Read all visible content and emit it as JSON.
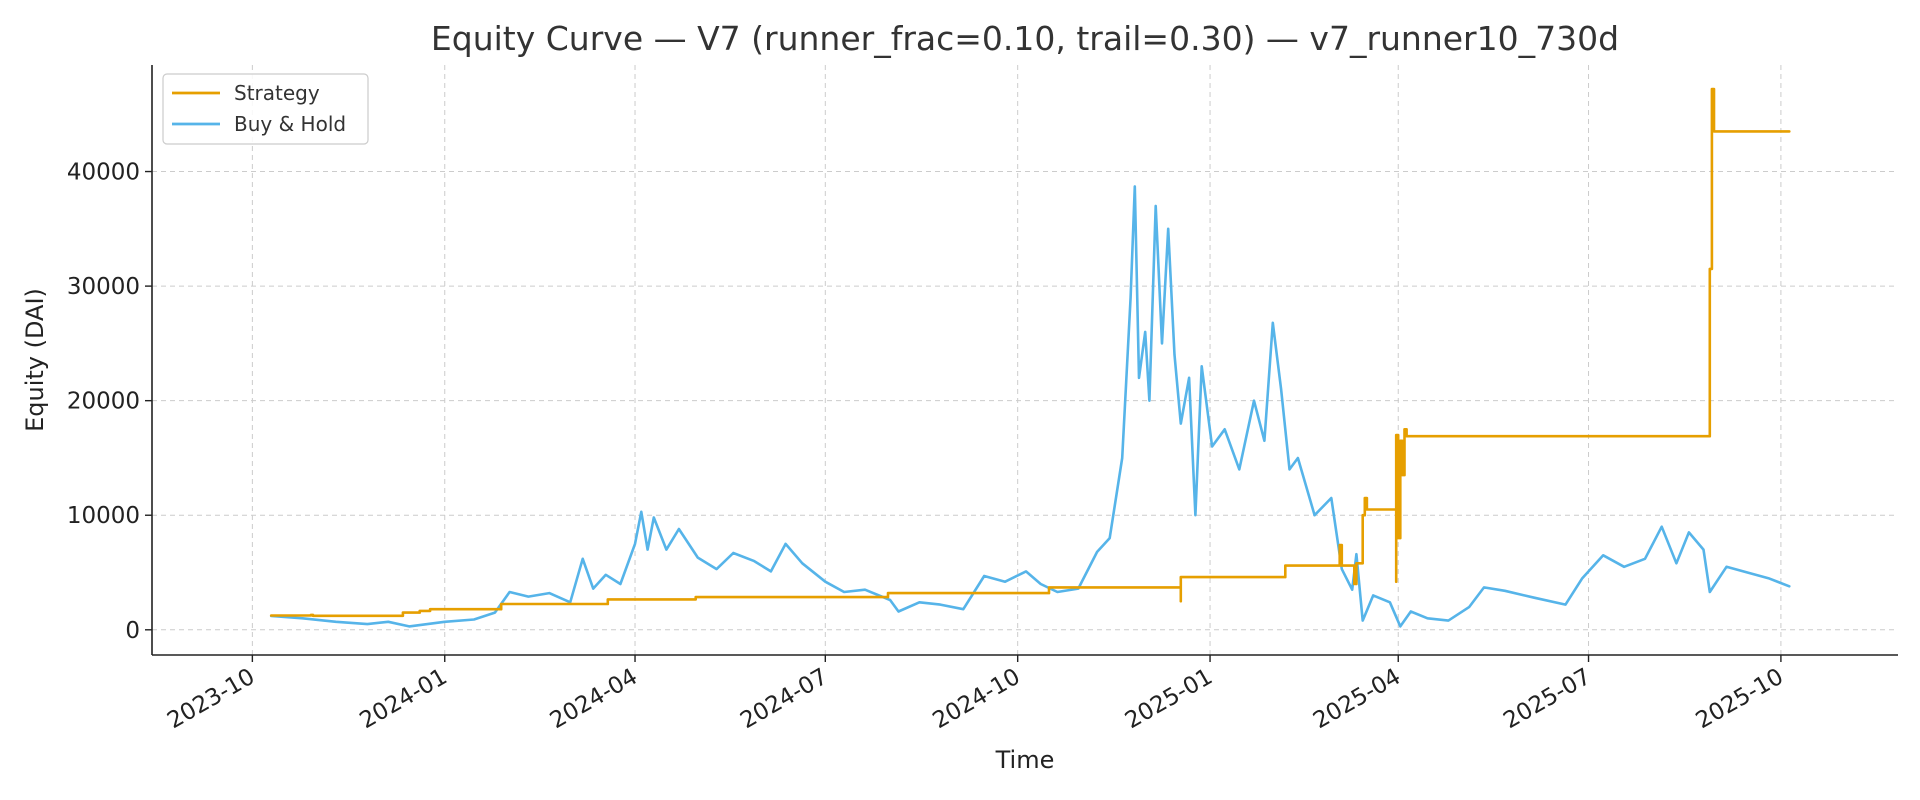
{
  "chart_data": {
    "type": "line",
    "title": "Equity Curve — V7 (runner_frac=0.10, trail=0.30) — v7_runner10_730d",
    "xlabel": "Time",
    "ylabel": "Equity (DAI)",
    "xlim": [
      "2023-08-14",
      "2025-11-26"
    ],
    "ylim": [
      -2200,
      49300
    ],
    "grid": true,
    "legend_position": "top-left",
    "x_ticks": [
      "2023-10",
      "2024-01",
      "2024-04",
      "2024-07",
      "2024-10",
      "2025-01",
      "2025-04",
      "2025-07",
      "2025-10"
    ],
    "y_ticks": [
      0,
      10000,
      20000,
      30000,
      40000
    ],
    "series": [
      {
        "name": "Strategy",
        "color": "#E69F00",
        "step": true,
        "points": [
          [
            "2023-10-10",
            1250
          ],
          [
            "2023-10-28",
            1250
          ],
          [
            "2023-10-29",
            1300
          ],
          [
            "2023-10-30",
            1220
          ],
          [
            "2023-12-11",
            1220
          ],
          [
            "2023-12-12",
            1500
          ],
          [
            "2023-12-20",
            1650
          ],
          [
            "2023-12-25",
            1800
          ],
          [
            "2024-01-27",
            1800
          ],
          [
            "2024-01-28",
            2250
          ],
          [
            "2024-03-18",
            2250
          ],
          [
            "2024-03-19",
            2650
          ],
          [
            "2024-04-29",
            2650
          ],
          [
            "2024-04-30",
            2850
          ],
          [
            "2024-07-30",
            2850
          ],
          [
            "2024-07-31",
            3200
          ],
          [
            "2024-10-15",
            3200
          ],
          [
            "2024-10-16",
            3700
          ],
          [
            "2024-12-17",
            3700
          ],
          [
            "2024-12-18",
            2500
          ],
          [
            "2024-12-18",
            4600
          ],
          [
            "2025-02-05",
            4600
          ],
          [
            "2025-02-06",
            5600
          ],
          [
            "2025-03-03",
            5600
          ],
          [
            "2025-03-04",
            7400
          ],
          [
            "2025-03-05",
            5600
          ],
          [
            "2025-03-10",
            5600
          ],
          [
            "2025-03-11",
            4000
          ],
          [
            "2025-03-12",
            5800
          ],
          [
            "2025-03-15",
            10000
          ],
          [
            "2025-03-16",
            11500
          ],
          [
            "2025-03-17",
            10500
          ],
          [
            "2025-03-30",
            10500
          ],
          [
            "2025-03-31",
            4200
          ],
          [
            "2025-03-31",
            17000
          ],
          [
            "2025-04-01",
            8000
          ],
          [
            "2025-04-02",
            16500
          ],
          [
            "2025-04-03",
            13500
          ],
          [
            "2025-04-04",
            17500
          ],
          [
            "2025-04-05",
            16900
          ],
          [
            "2025-08-28",
            16900
          ],
          [
            "2025-08-28",
            31500
          ],
          [
            "2025-08-29",
            36000
          ],
          [
            "2025-08-29",
            47200
          ],
          [
            "2025-08-30",
            43500
          ],
          [
            "2025-10-05",
            43500
          ]
        ]
      },
      {
        "name": "Buy & Hold",
        "color": "#56B4E9",
        "step": false,
        "points": [
          [
            "2023-10-10",
            1200
          ],
          [
            "2023-10-25",
            1000
          ],
          [
            "2023-11-10",
            700
          ],
          [
            "2023-11-25",
            500
          ],
          [
            "2023-12-05",
            700
          ],
          [
            "2023-12-15",
            300
          ],
          [
            "2024-01-01",
            700
          ],
          [
            "2024-01-15",
            900
          ],
          [
            "2024-01-25",
            1500
          ],
          [
            "2024-02-01",
            3300
          ],
          [
            "2024-02-10",
            2900
          ],
          [
            "2024-02-20",
            3200
          ],
          [
            "2024-03-01",
            2400
          ],
          [
            "2024-03-07",
            6200
          ],
          [
            "2024-03-12",
            3600
          ],
          [
            "2024-03-18",
            4800
          ],
          [
            "2024-03-25",
            4000
          ],
          [
            "2024-04-01",
            7500
          ],
          [
            "2024-04-04",
            10300
          ],
          [
            "2024-04-07",
            7000
          ],
          [
            "2024-04-10",
            9800
          ],
          [
            "2024-04-16",
            7000
          ],
          [
            "2024-04-22",
            8800
          ],
          [
            "2024-05-01",
            6300
          ],
          [
            "2024-05-10",
            5300
          ],
          [
            "2024-05-18",
            6700
          ],
          [
            "2024-05-28",
            6000
          ],
          [
            "2024-06-05",
            5100
          ],
          [
            "2024-06-12",
            7500
          ],
          [
            "2024-06-20",
            5800
          ],
          [
            "2024-07-01",
            4200
          ],
          [
            "2024-07-10",
            3300
          ],
          [
            "2024-07-20",
            3500
          ],
          [
            "2024-08-01",
            2600
          ],
          [
            "2024-08-05",
            1600
          ],
          [
            "2024-08-15",
            2400
          ],
          [
            "2024-08-25",
            2200
          ],
          [
            "2024-09-05",
            1800
          ],
          [
            "2024-09-15",
            4700
          ],
          [
            "2024-09-25",
            4200
          ],
          [
            "2024-10-05",
            5100
          ],
          [
            "2024-10-12",
            4000
          ],
          [
            "2024-10-20",
            3300
          ],
          [
            "2024-10-30",
            3600
          ],
          [
            "2024-11-08",
            6800
          ],
          [
            "2024-11-14",
            8000
          ],
          [
            "2024-11-20",
            15000
          ],
          [
            "2024-11-24",
            29000
          ],
          [
            "2024-11-26",
            38700
          ],
          [
            "2024-11-28",
            22000
          ],
          [
            "2024-12-01",
            26000
          ],
          [
            "2024-12-03",
            20000
          ],
          [
            "2024-12-06",
            37000
          ],
          [
            "2024-12-09",
            25000
          ],
          [
            "2024-12-12",
            35000
          ],
          [
            "2024-12-15",
            24000
          ],
          [
            "2024-12-18",
            18000
          ],
          [
            "2024-12-22",
            22000
          ],
          [
            "2024-12-25",
            10000
          ],
          [
            "2024-12-28",
            23000
          ],
          [
            "2025-01-02",
            16000
          ],
          [
            "2025-01-08",
            17500
          ],
          [
            "2025-01-15",
            14000
          ],
          [
            "2025-01-22",
            20000
          ],
          [
            "2025-01-27",
            16500
          ],
          [
            "2025-01-31",
            26800
          ],
          [
            "2025-02-04",
            21000
          ],
          [
            "2025-02-08",
            14000
          ],
          [
            "2025-02-12",
            15000
          ],
          [
            "2025-02-20",
            10000
          ],
          [
            "2025-02-28",
            11500
          ],
          [
            "2025-03-05",
            5300
          ],
          [
            "2025-03-10",
            3500
          ],
          [
            "2025-03-12",
            6600
          ],
          [
            "2025-03-15",
            800
          ],
          [
            "2025-03-20",
            3000
          ],
          [
            "2025-03-28",
            2400
          ],
          [
            "2025-04-02",
            300
          ],
          [
            "2025-04-07",
            1600
          ],
          [
            "2025-04-15",
            1000
          ],
          [
            "2025-04-25",
            800
          ],
          [
            "2025-05-05",
            2000
          ],
          [
            "2025-05-12",
            3700
          ],
          [
            "2025-05-22",
            3400
          ],
          [
            "2025-06-05",
            2800
          ],
          [
            "2025-06-20",
            2200
          ],
          [
            "2025-06-28",
            4500
          ],
          [
            "2025-07-08",
            6500
          ],
          [
            "2025-07-18",
            5500
          ],
          [
            "2025-07-28",
            6200
          ],
          [
            "2025-08-05",
            9000
          ],
          [
            "2025-08-12",
            5800
          ],
          [
            "2025-08-18",
            8500
          ],
          [
            "2025-08-25",
            7000
          ],
          [
            "2025-08-28",
            3300
          ],
          [
            "2025-09-05",
            5500
          ],
          [
            "2025-09-15",
            5000
          ],
          [
            "2025-09-25",
            4500
          ],
          [
            "2025-10-05",
            3800
          ]
        ]
      }
    ]
  }
}
